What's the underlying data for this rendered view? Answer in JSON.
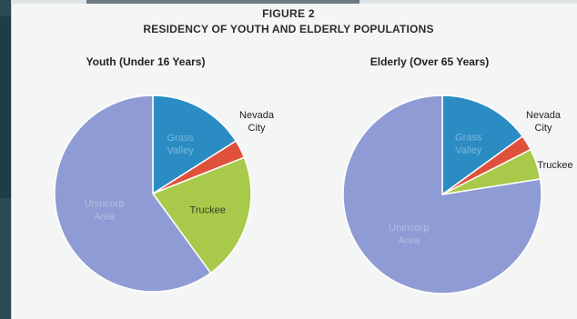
{
  "figure": {
    "label": "FIGURE 2",
    "title": "RESIDENCY OF YOUTH AND ELDERLY POPULATIONS"
  },
  "colors": {
    "Grass Valley": "#2b8cc4",
    "Nevada City": "#e0513c",
    "Truckee": "#a9c94a",
    "Unincorp Area": "#8f9bd4"
  },
  "chart_data": [
    {
      "type": "pie",
      "title": "Youth (Under 16 Years)",
      "categories": [
        "Grass Valley",
        "Nevada City",
        "Truckee",
        "Unincorp Area"
      ],
      "labels": [
        [
          "Grass",
          "Valley"
        ],
        [
          "Nevada",
          "City"
        ],
        [
          "Truckee"
        ],
        [
          "Unincorp",
          "Area"
        ]
      ],
      "values": [
        16,
        3,
        21,
        60
      ],
      "label_style": [
        "inside",
        "outside",
        "inside",
        "inside"
      ]
    },
    {
      "type": "pie",
      "title": "Elderly (Over 65 Years)",
      "categories": [
        "Grass Valley",
        "Nevada City",
        "Truckee",
        "Unincorp Area"
      ],
      "labels": [
        [
          "Grass",
          "Valley"
        ],
        [
          "Nevada",
          "City"
        ],
        [
          "Truckee"
        ],
        [
          "Unincorp",
          "Area"
        ]
      ],
      "values": [
        15,
        2.5,
        5,
        77.5
      ],
      "label_style": [
        "inside",
        "outside",
        "outside",
        "inside"
      ]
    }
  ]
}
